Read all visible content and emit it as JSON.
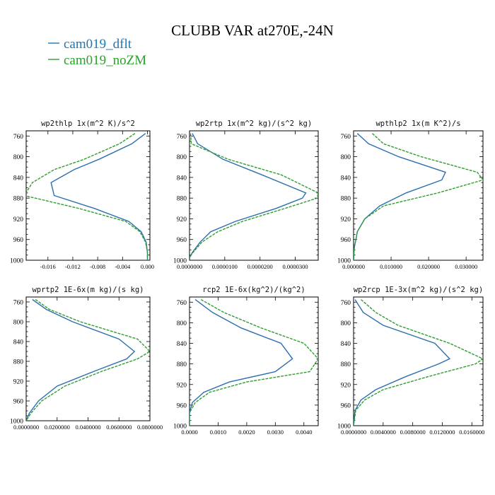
{
  "title": "CLUBB VAR at270E,-24N",
  "legend": [
    {
      "label": "cam019_dflt",
      "color": "#1f77b4"
    },
    {
      "label": "cam019_noZM",
      "color": "#2ca02c"
    }
  ],
  "colors": {
    "dflt": "#2a6fb0",
    "noZM": "#2f9e2f"
  },
  "chart_data": [
    {
      "type": "line",
      "title": "wp2thlp  1x(m^2 K)/s^2",
      "xlim": [
        -0.0195,
        0.0004
      ],
      "ylim": [
        1000,
        750
      ],
      "yticks": [
        "760",
        "800",
        "840",
        "880",
        "920",
        "960",
        "1000"
      ],
      "xticks": [
        {
          "v": -0.016,
          "label": "-0.016"
        },
        {
          "v": -0.012,
          "label": "-0.012"
        },
        {
          "v": -0.008,
          "label": "-0.008"
        },
        {
          "v": -0.004,
          "label": "-0.004"
        },
        {
          "v": 0.0,
          "label": "0.000"
        }
      ],
      "y": [
        755,
        775,
        805,
        825,
        850,
        875,
        900,
        925,
        945,
        965,
        985,
        1000
      ],
      "series": [
        {
          "name": "cam019_dflt",
          "values": [
            -0.0003,
            -0.0025,
            -0.0078,
            -0.0118,
            -0.0155,
            -0.015,
            -0.0085,
            -0.003,
            -0.001,
            -0.0002,
            0.0,
            0.0
          ]
        },
        {
          "name": "cam019_noZM",
          "values": [
            -0.002,
            -0.0045,
            -0.0102,
            -0.015,
            -0.0185,
            -0.0198,
            -0.011,
            -0.0035,
            -0.0012,
            -0.0003,
            0.0,
            0.0
          ]
        }
      ]
    },
    {
      "type": "line",
      "title": "wp2rtp  1x(m^2 kg)/(s^2 kg)",
      "xlim": [
        0,
        3.65e-05
      ],
      "ylim": [
        1000,
        750
      ],
      "yticks": [
        "760",
        "800",
        "840",
        "880",
        "920",
        "960",
        "1000"
      ],
      "xticks": [
        {
          "v": 0,
          "label": "0.0000000"
        },
        {
          "v": 1e-05,
          "label": "0.0000100"
        },
        {
          "v": 2e-05,
          "label": "0.0000200"
        },
        {
          "v": 3e-05,
          "label": "0.0000300"
        }
      ],
      "y": [
        755,
        775,
        805,
        835,
        870,
        880,
        900,
        925,
        945,
        965,
        985,
        995
      ],
      "series": [
        {
          "name": "cam019_dflt",
          "values": [
            8e-07,
            2.3e-06,
            9.5e-06,
            2.05e-05,
            3.3e-05,
            3.2e-05,
            2.45e-05,
            1.3e-05,
            6e-06,
            3e-06,
            8e-07,
            0.0
          ]
        },
        {
          "name": "cam019_noZM",
          "values": [
            3e-07,
            5e-07,
            1.1e-05,
            2.6e-05,
            3.65e-05,
            3.62e-05,
            2.7e-05,
            1.5e-05,
            8e-06,
            3.5e-06,
            1e-06,
            0.0
          ]
        }
      ]
    },
    {
      "type": "line",
      "title": "wpthlp2  1x(m K^2)/s",
      "xlim": [
        0,
        0.0345
      ],
      "ylim": [
        1000,
        750
      ],
      "yticks": [
        "760",
        "800",
        "840",
        "880",
        "920",
        "960",
        "1000"
      ],
      "xticks": [
        {
          "v": 0,
          "label": "0.000000"
        },
        {
          "v": 0.01,
          "label": "0.010000"
        },
        {
          "v": 0.02,
          "label": "0.020000"
        },
        {
          "v": 0.03,
          "label": "0.030000"
        }
      ],
      "y": [
        755,
        775,
        800,
        830,
        845,
        870,
        895,
        920,
        945,
        975,
        1000
      ],
      "series": [
        {
          "name": "cam019_dflt",
          "values": [
            0.001,
            0.004,
            0.012,
            0.0245,
            0.0235,
            0.014,
            0.007,
            0.003,
            0.001,
            0.0002,
            0.0
          ]
        },
        {
          "name": "cam019_noZM",
          "values": [
            0.005,
            0.008,
            0.018,
            0.033,
            0.0345,
            0.0225,
            0.008,
            0.003,
            0.001,
            0.0002,
            0.0
          ]
        }
      ]
    },
    {
      "type": "line",
      "title": "wprtp2  1E-6x(m kg)/(s kg)",
      "xlim": [
        0,
        0.08
      ],
      "ylim": [
        1000,
        750
      ],
      "yticks": [
        "760",
        "800",
        "840",
        "880",
        "920",
        "960",
        "1000"
      ],
      "xticks": [
        {
          "v": 0,
          "label": "0.0000000"
        },
        {
          "v": 0.02,
          "label": "0.0200000"
        },
        {
          "v": 0.04,
          "label": "0.0400000"
        },
        {
          "v": 0.06,
          "label": "0.0600000"
        },
        {
          "v": 0.08,
          "label": "0.0800000"
        }
      ],
      "y": [
        755,
        775,
        800,
        835,
        860,
        875,
        900,
        930,
        960,
        985,
        1000
      ],
      "series": [
        {
          "name": "cam019_dflt",
          "values": [
            0.004,
            0.013,
            0.03,
            0.06,
            0.07,
            0.065,
            0.044,
            0.02,
            0.008,
            0.002,
            0.0
          ]
        },
        {
          "name": "cam019_noZM",
          "values": [
            0.006,
            0.015,
            0.035,
            0.072,
            0.08,
            0.072,
            0.049,
            0.025,
            0.01,
            0.003,
            0.0
          ]
        }
      ]
    },
    {
      "type": "line",
      "title": "rcp2  1E-6x(kg^2)/(kg^2)",
      "xlim": [
        0,
        0.0045
      ],
      "ylim": [
        1000,
        750
      ],
      "yticks": [
        "760",
        "800",
        "840",
        "880",
        "920",
        "960",
        "1000"
      ],
      "xticks": [
        {
          "v": 0,
          "label": "0.0000"
        },
        {
          "v": 0.001,
          "label": "0.0010"
        },
        {
          "v": 0.002,
          "label": "0.0020"
        },
        {
          "v": 0.003,
          "label": "0.0030"
        },
        {
          "v": 0.004,
          "label": "0.0040"
        }
      ],
      "y": [
        755,
        780,
        810,
        840,
        870,
        895,
        915,
        935,
        955,
        975,
        1000
      ],
      "series": [
        {
          "name": "cam019_dflt",
          "values": [
            0.0002,
            0.0008,
            0.0018,
            0.0032,
            0.0036,
            0.003,
            0.0014,
            0.0005,
            0.0001,
            0.0,
            0.0
          ]
        },
        {
          "name": "cam019_noZM",
          "values": [
            0.0004,
            0.0012,
            0.0025,
            0.004,
            0.0045,
            0.0042,
            0.002,
            0.0007,
            0.0002,
            0.0,
            0.0
          ]
        }
      ]
    },
    {
      "type": "line",
      "title": "wp2rcp  1E-3x(m^2 kg)/(s^2 kg)",
      "xlim": [
        0,
        0.0175
      ],
      "ylim": [
        1000,
        750
      ],
      "yticks": [
        "760",
        "800",
        "840",
        "880",
        "920",
        "960",
        "1000"
      ],
      "xticks": [
        {
          "v": 0,
          "label": "0.0000000"
        },
        {
          "v": 0.004,
          "label": "0.0040000"
        },
        {
          "v": 0.008,
          "label": "0.0080000"
        },
        {
          "v": 0.012,
          "label": "0.0120000"
        },
        {
          "v": 0.016,
          "label": "0.0160000"
        }
      ],
      "y": [
        755,
        780,
        805,
        840,
        870,
        880,
        905,
        930,
        950,
        970,
        1000
      ],
      "series": [
        {
          "name": "cam019_dflt",
          "values": [
            0.0002,
            0.0013,
            0.004,
            0.011,
            0.013,
            0.0115,
            0.007,
            0.003,
            0.001,
            0.0002,
            0.0
          ]
        },
        {
          "name": "cam019_noZM",
          "values": [
            0.001,
            0.003,
            0.006,
            0.013,
            0.0175,
            0.0165,
            0.01,
            0.004,
            0.0015,
            0.0003,
            0.0
          ]
        }
      ]
    }
  ]
}
